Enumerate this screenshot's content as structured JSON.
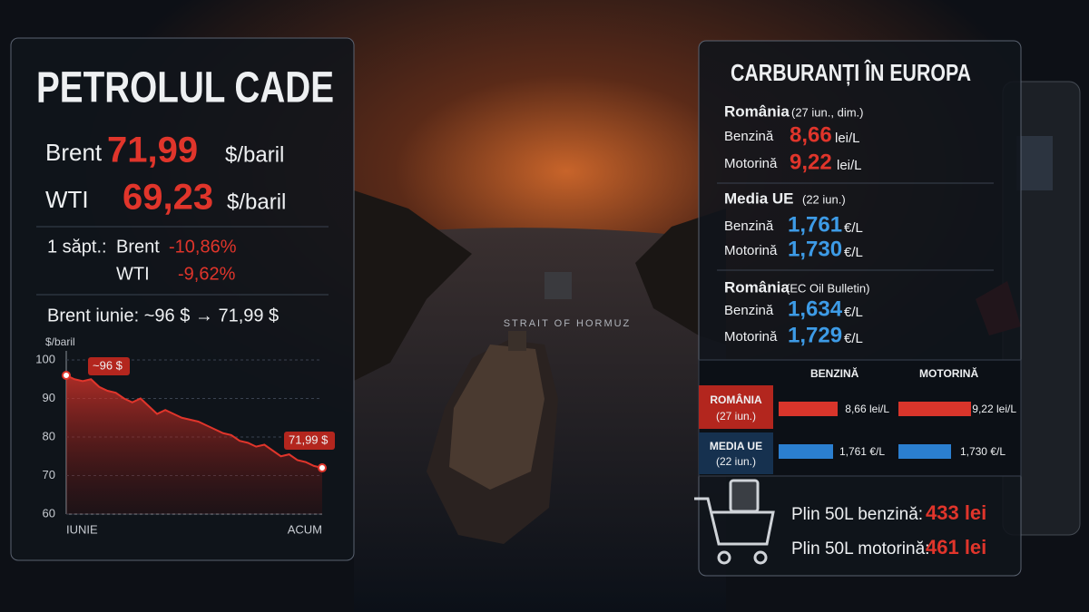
{
  "left": {
    "title": "PETROLUL CADE",
    "prices": [
      {
        "name": "Brent",
        "value": "71,99",
        "unit": "$/baril"
      },
      {
        "name": "WTI",
        "value": "69,23",
        "unit": "$/baril"
      }
    ],
    "week": {
      "label": "1 săpt.:",
      "rows": [
        {
          "name": "Brent",
          "value": "-10,86%"
        },
        {
          "name": "WTI",
          "value": "-9,62%"
        }
      ]
    },
    "summary": "Brent iunie: ~96 $ → 71,99 $"
  },
  "chart_data": {
    "type": "line",
    "y_label": "$/baril",
    "categories": [
      "IUNIE",
      null,
      null,
      null,
      null,
      null,
      null,
      null,
      null,
      null,
      null,
      null,
      null,
      null,
      null,
      null,
      null,
      null,
      null,
      null,
      null,
      null,
      null,
      null,
      null,
      null,
      null,
      null,
      null,
      null,
      null,
      "ACUM"
    ],
    "values": [
      96,
      95,
      94.5,
      95,
      93,
      92,
      91.5,
      90,
      89,
      90,
      88,
      86,
      87,
      86,
      85,
      84.5,
      84,
      83,
      82,
      81,
      80.5,
      79,
      78.5,
      77.5,
      78,
      76.5,
      75,
      75.5,
      74,
      73.5,
      72.5,
      71.99
    ],
    "value_labels": [
      "~96 $",
      null,
      null,
      null,
      null,
      null,
      null,
      null,
      null,
      null,
      null,
      null,
      null,
      null,
      null,
      null,
      null,
      null,
      null,
      null,
      null,
      null,
      null,
      null,
      null,
      null,
      null,
      null,
      null,
      null,
      null,
      "71,99 $"
    ],
    "color": "#e0352b",
    "ylim": [
      60,
      100
    ],
    "yticks": [
      60,
      70,
      80,
      90,
      100
    ],
    "grid": true
  },
  "right": {
    "title": "CARBURANȚI ÎN EUROPA",
    "sections": [
      {
        "name": "România",
        "note": "(27 iun., dim.)",
        "rows": [
          {
            "fuel": "Benzină",
            "value": "8,66",
            "unit": "lei/L"
          },
          {
            "fuel": "Motorină",
            "value": "9,22",
            "unit": "lei/L"
          }
        ]
      },
      {
        "name": "Media UE",
        "note": "(22 iun.)",
        "rows": [
          {
            "fuel": "Benzină",
            "value": "1,761",
            "unit": "€/L"
          },
          {
            "fuel": "Motorină",
            "value": "1,730",
            "unit": "€/L"
          }
        ]
      },
      {
        "name": "România",
        "note": "(EC Oil Bulletin)",
        "rows": [
          {
            "fuel": "Benzină",
            "value": "1,634",
            "unit": "€/L"
          },
          {
            "fuel": "Motorină",
            "value": "1,729",
            "unit": "€/L"
          }
        ]
      }
    ],
    "table": {
      "headers": [
        "BENZINĂ",
        "MOTORINĂ"
      ],
      "rows": [
        {
          "name": "ROMÂNIA",
          "note": "(27 iun.)",
          "cells": [
            "8,66 lei/L",
            "9,22 lei/L"
          ]
        },
        {
          "name": "MEDIA UE",
          "note": "(22 iun.)",
          "cells": [
            "1,761 €/L",
            "1,730 €/L"
          ]
        }
      ]
    },
    "totals": [
      {
        "label": "Plin 50L benzină:",
        "value": "433 lei"
      },
      {
        "label": "Plin 50L motorină:",
        "value": "461 lei"
      }
    ]
  },
  "map_label": "STRAIT OF HORMUZ"
}
